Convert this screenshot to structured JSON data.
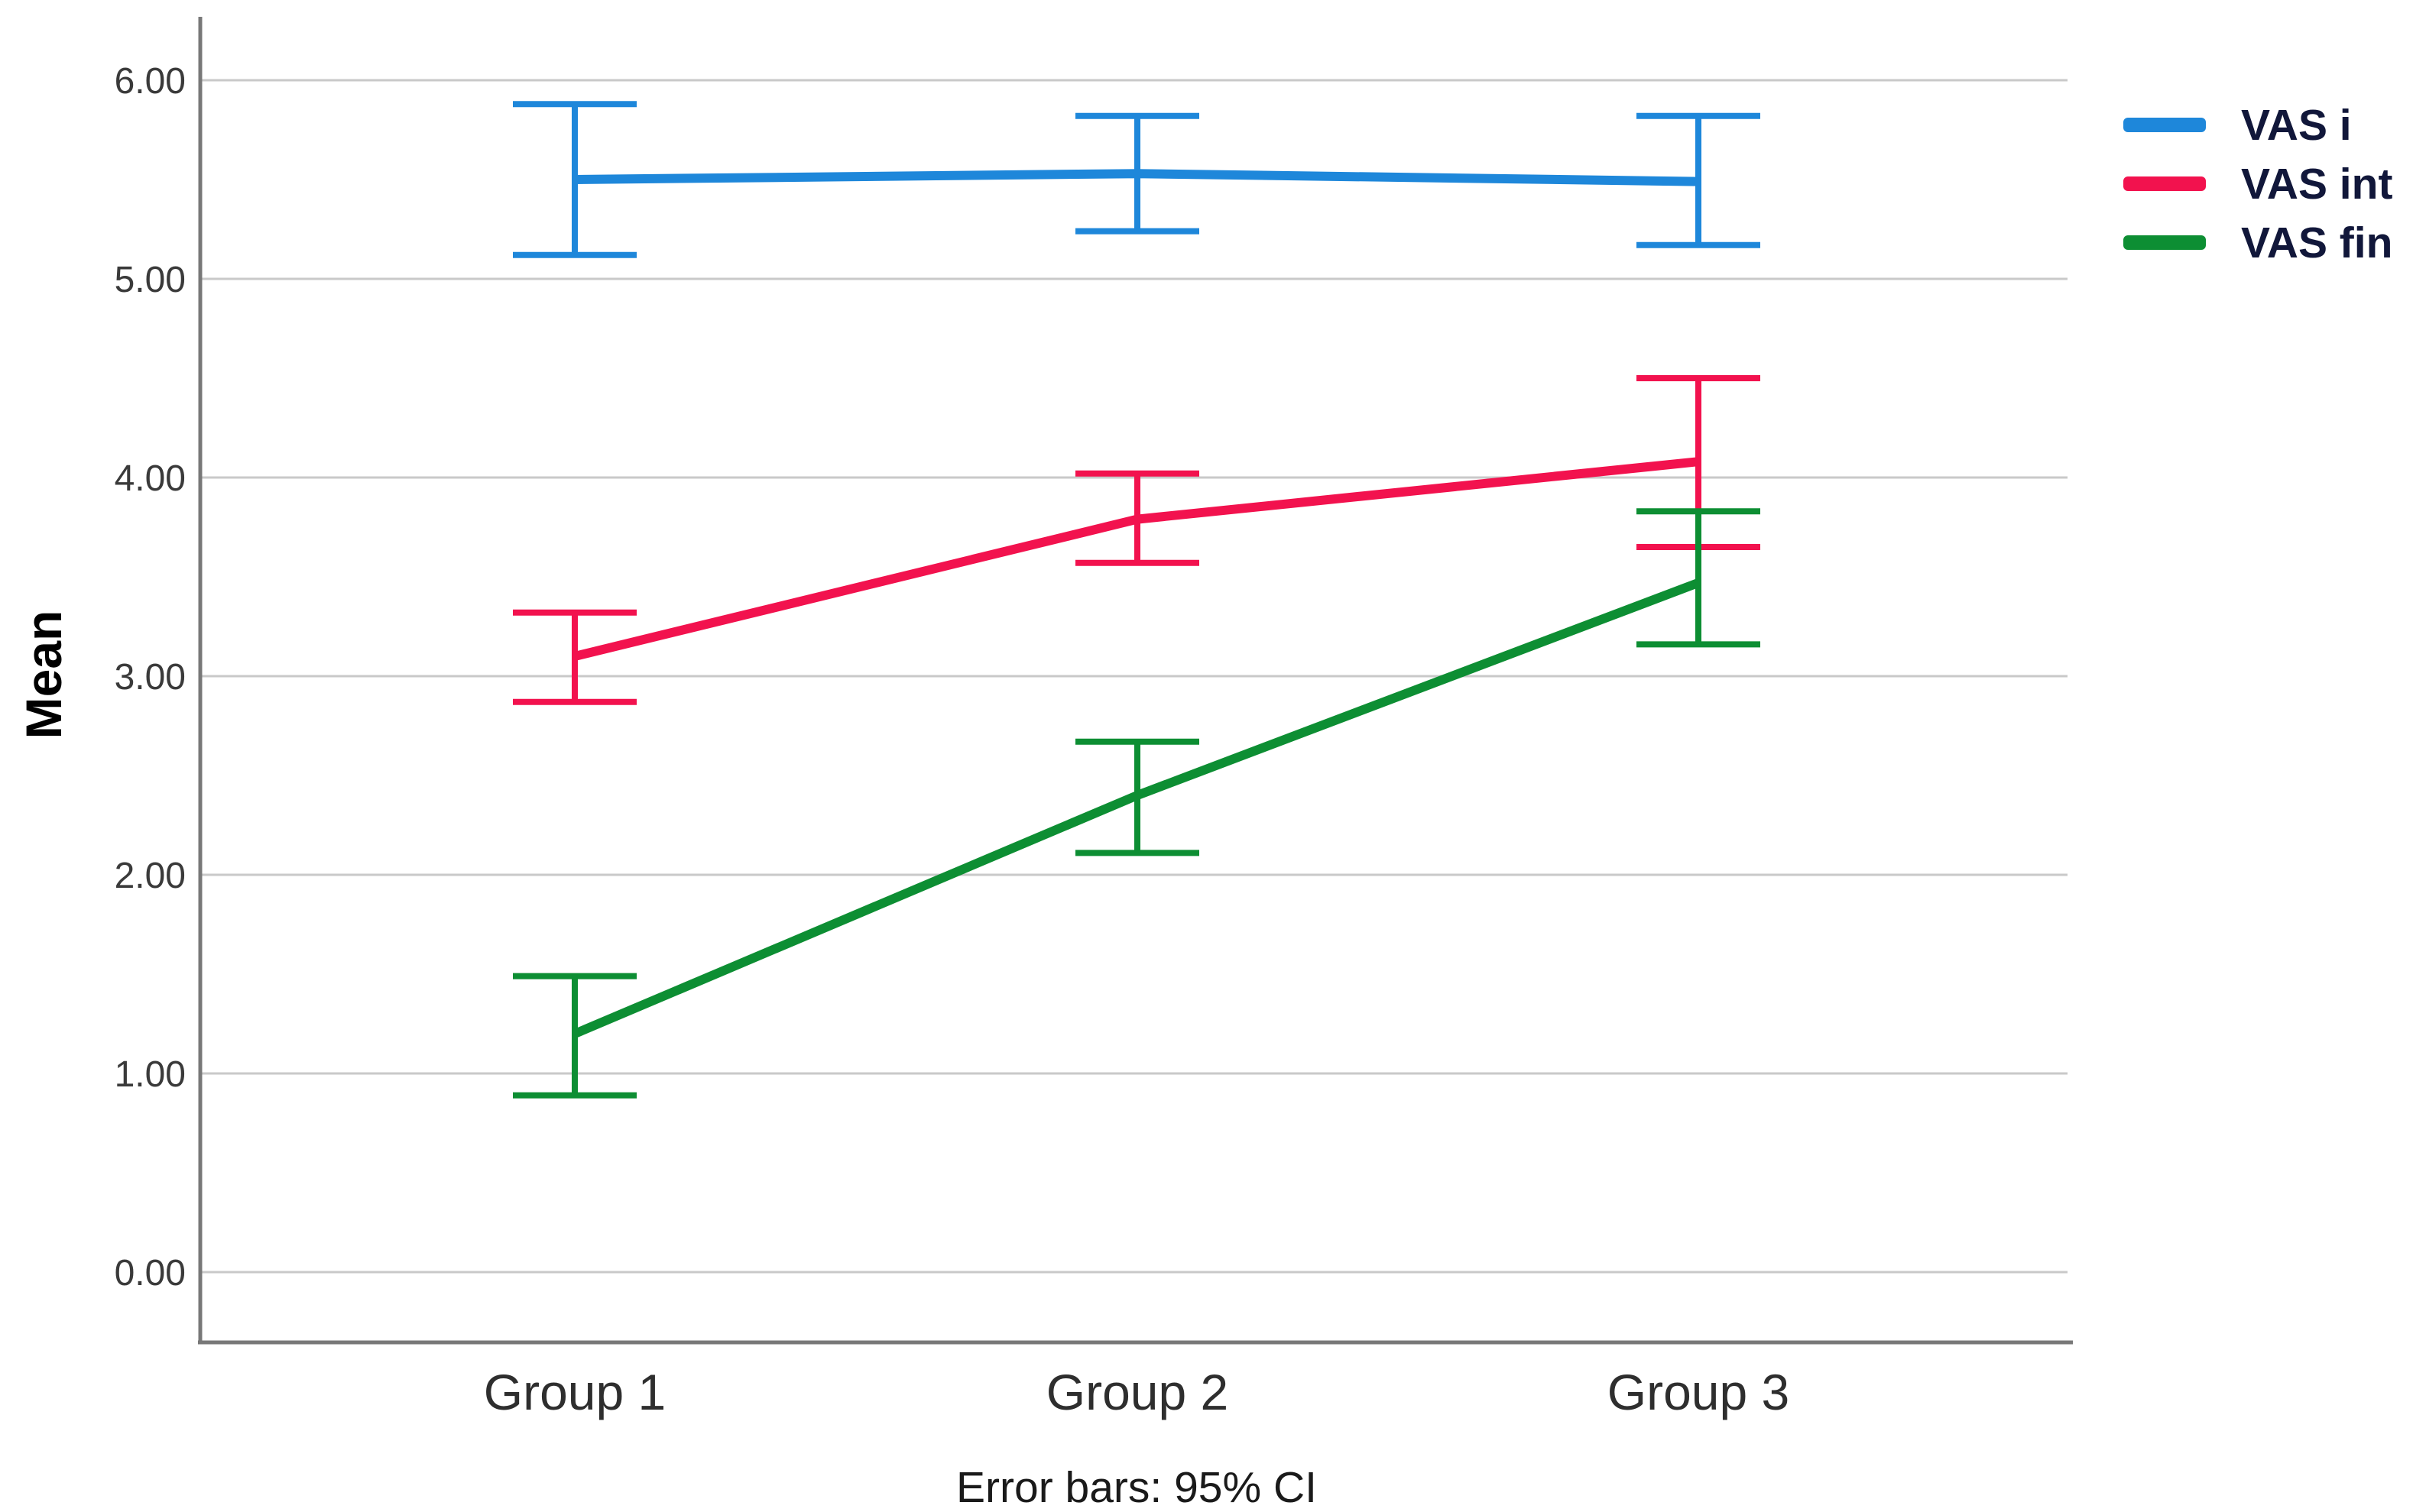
{
  "chart_data": {
    "type": "line",
    "title": "",
    "xlabel": "",
    "ylabel": "Mean",
    "caption": "Error bars: 95% CI",
    "categories": [
      "Group 1",
      "Group 2",
      "Group 3"
    ],
    "yticks": [
      {
        "value": 0,
        "label": "0.00"
      },
      {
        "value": 1,
        "label": "1.00"
      },
      {
        "value": 2,
        "label": "2.00"
      },
      {
        "value": 3,
        "label": "3.00"
      },
      {
        "value": 4,
        "label": "4.00"
      },
      {
        "value": 5,
        "label": "5.00"
      },
      {
        "value": 6,
        "label": "6.00"
      }
    ],
    "ylim": [
      -0.35,
      6.32
    ],
    "grid": true,
    "legend_position": "right",
    "error_bars": "95% CI",
    "series": [
      {
        "name": "VAS i",
        "color": "#1e87da",
        "means": [
          5.5,
          5.53,
          5.49
        ],
        "ci_low": [
          5.12,
          5.24,
          5.17
        ],
        "ci_high": [
          5.88,
          5.82,
          5.82
        ]
      },
      {
        "name": "VAS int",
        "color": "#f2124e",
        "means": [
          3.1,
          3.79,
          4.08
        ],
        "ci_low": [
          2.87,
          3.57,
          3.65
        ],
        "ci_high": [
          3.32,
          4.02,
          4.5
        ]
      },
      {
        "name": "VAS fin",
        "color": "#0d8e33",
        "means": [
          1.2,
          2.4,
          3.47
        ],
        "ci_low": [
          0.89,
          2.11,
          3.16
        ],
        "ci_high": [
          1.49,
          2.67,
          3.83
        ]
      }
    ],
    "style": {
      "grid_color": "#c9c9c9",
      "axis_color": "#787878",
      "tick_label_color": "#3a3a3a",
      "category_label_color": "#2e2e2e",
      "legend_text_color": "#11173a",
      "background": "#ffffff"
    }
  }
}
